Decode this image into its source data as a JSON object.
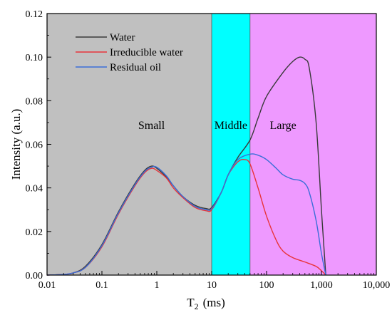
{
  "chart_data": {
    "type": "line",
    "xscale": "log",
    "xlim": [
      0.01,
      10000
    ],
    "ylim": [
      0,
      0.12
    ],
    "xticks": [
      0.01,
      0.1,
      1,
      10,
      100,
      1000,
      10000
    ],
    "xtick_labels": [
      "0.01",
      "0.1",
      "1",
      "10",
      "100",
      "1,000",
      "10,000"
    ],
    "yticks": [
      0,
      0.02,
      0.04,
      0.06,
      0.08,
      0.1,
      0.12
    ],
    "ytick_labels": [
      "0.00",
      "0.02",
      "0.04",
      "0.06",
      "0.08",
      "0.10",
      "0.12"
    ],
    "xlabel_main": "T",
    "xlabel_sub": "2",
    "xlabel_unit": "(ms)",
    "ylabel": "Intensity (a.u.)",
    "legend_position": "top-left",
    "regions": [
      {
        "name": "Small",
        "x0": 0.01,
        "x1": 10,
        "color": "#c0c0c0"
      },
      {
        "name": "Middle",
        "x0": 10,
        "x1": 50,
        "color": "#00ffff"
      },
      {
        "name": "Large",
        "x0": 50,
        "x1": 10000,
        "color": "#ee99ff"
      }
    ],
    "series": [
      {
        "name": "Water",
        "color": "#3a3a3a",
        "x": [
          0.01,
          0.02,
          0.03,
          0.05,
          0.1,
          0.2,
          0.4,
          0.6,
          0.8,
          1,
          1.5,
          2,
          3,
          5,
          8,
          10,
          15,
          20,
          30,
          50,
          70,
          100,
          200,
          300,
          400,
          500,
          600,
          800,
          1000,
          1200
        ],
        "values": [
          0,
          0.0003,
          0.001,
          0.004,
          0.014,
          0.029,
          0.042,
          0.048,
          0.05,
          0.049,
          0.045,
          0.041,
          0.036,
          0.032,
          0.0305,
          0.031,
          0.038,
          0.046,
          0.054,
          0.062,
          0.072,
          0.082,
          0.093,
          0.098,
          0.1,
          0.099,
          0.095,
          0.07,
          0.03,
          0
        ]
      },
      {
        "name": "Irreducible water",
        "color": "#e8343a",
        "x": [
          0.01,
          0.02,
          0.03,
          0.05,
          0.1,
          0.2,
          0.4,
          0.6,
          0.8,
          1,
          1.5,
          2,
          3,
          5,
          8,
          10,
          15,
          20,
          30,
          40,
          50,
          70,
          100,
          150,
          200,
          300,
          500,
          800,
          1000,
          1200
        ],
        "values": [
          0,
          0.0003,
          0.001,
          0.0035,
          0.013,
          0.028,
          0.041,
          0.047,
          0.049,
          0.048,
          0.0445,
          0.04,
          0.0355,
          0.031,
          0.0295,
          0.03,
          0.038,
          0.046,
          0.052,
          0.053,
          0.051,
          0.04,
          0.027,
          0.016,
          0.011,
          0.008,
          0.006,
          0.004,
          0.002,
          0
        ]
      },
      {
        "name": "Residual oil",
        "color": "#3a6ed8",
        "x": [
          0.01,
          0.02,
          0.03,
          0.05,
          0.1,
          0.2,
          0.4,
          0.6,
          0.8,
          1,
          1.5,
          2,
          3,
          5,
          8,
          10,
          15,
          20,
          30,
          50,
          70,
          100,
          150,
          200,
          300,
          400,
          500,
          600,
          800,
          1000,
          1200
        ],
        "values": [
          0,
          0.0003,
          0.001,
          0.0035,
          0.0135,
          0.0285,
          0.0415,
          0.0475,
          0.0495,
          0.0495,
          0.0455,
          0.041,
          0.036,
          0.0315,
          0.03,
          0.0305,
          0.038,
          0.046,
          0.053,
          0.0555,
          0.055,
          0.053,
          0.049,
          0.046,
          0.044,
          0.0435,
          0.042,
          0.038,
          0.025,
          0.01,
          0
        ]
      }
    ]
  }
}
